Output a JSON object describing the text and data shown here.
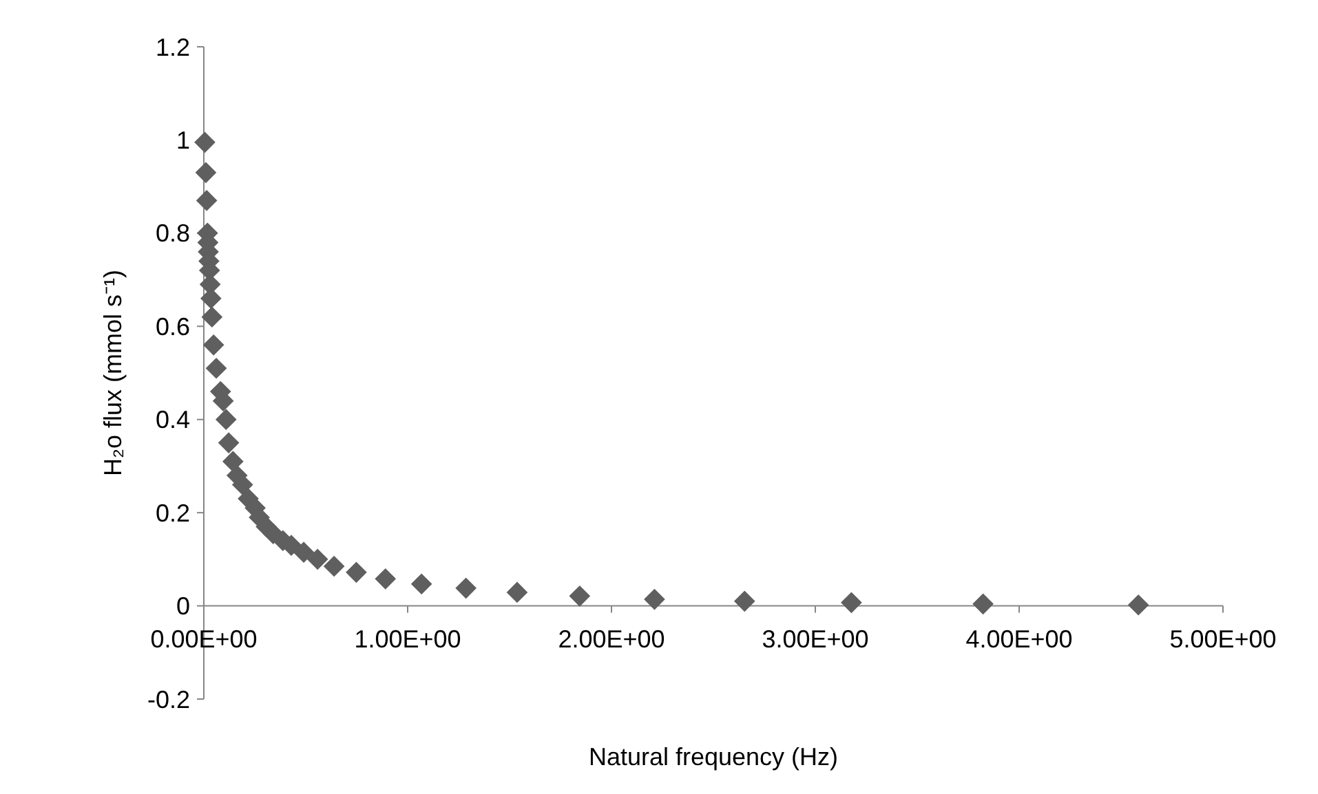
{
  "chart_data": {
    "type": "scatter",
    "xlabel": "Natural frequency (Hz)",
    "ylabel": "H₂o flux (mmol s⁻¹)",
    "marker": "diamond",
    "xlim": [
      0,
      5
    ],
    "ylim": [
      -0.2,
      1.2
    ],
    "xticks": [
      {
        "value": 0,
        "label": "0.00E+00"
      },
      {
        "value": 1,
        "label": "1.00E+00"
      },
      {
        "value": 2,
        "label": "2.00E+00"
      },
      {
        "value": 3,
        "label": "3.00E+00"
      },
      {
        "value": 4,
        "label": "4.00E+00"
      },
      {
        "value": 5,
        "label": "5.00E+00"
      }
    ],
    "yticks": [
      -0.2,
      0,
      0.2,
      0.4,
      0.6,
      0.8,
      1,
      1.2
    ],
    "series": [
      {
        "color": "#5f5f5f",
        "x": [
          0.005,
          0.01,
          0.014,
          0.018,
          0.02,
          0.022,
          0.025,
          0.028,
          0.031,
          0.035,
          0.04,
          0.048,
          0.061,
          0.082,
          0.095,
          0.109,
          0.122,
          0.143,
          0.163,
          0.19,
          0.218,
          0.252,
          0.272,
          0.306,
          0.34,
          0.388,
          0.429,
          0.49,
          0.558,
          0.639,
          0.748,
          0.891,
          1.068,
          1.286,
          1.537,
          1.844,
          2.211,
          2.653,
          3.177,
          3.823,
          4.585
        ],
        "values": [
          0.995,
          0.93,
          0.87,
          0.8,
          0.78,
          0.76,
          0.74,
          0.72,
          0.69,
          0.66,
          0.62,
          0.56,
          0.51,
          0.46,
          0.44,
          0.4,
          0.35,
          0.31,
          0.28,
          0.26,
          0.23,
          0.21,
          0.19,
          0.17,
          0.155,
          0.14,
          0.13,
          0.115,
          0.1,
          0.085,
          0.072,
          0.058,
          0.047,
          0.038,
          0.029,
          0.021,
          0.014,
          0.01,
          0.007,
          0.004,
          0.002
        ]
      }
    ]
  }
}
